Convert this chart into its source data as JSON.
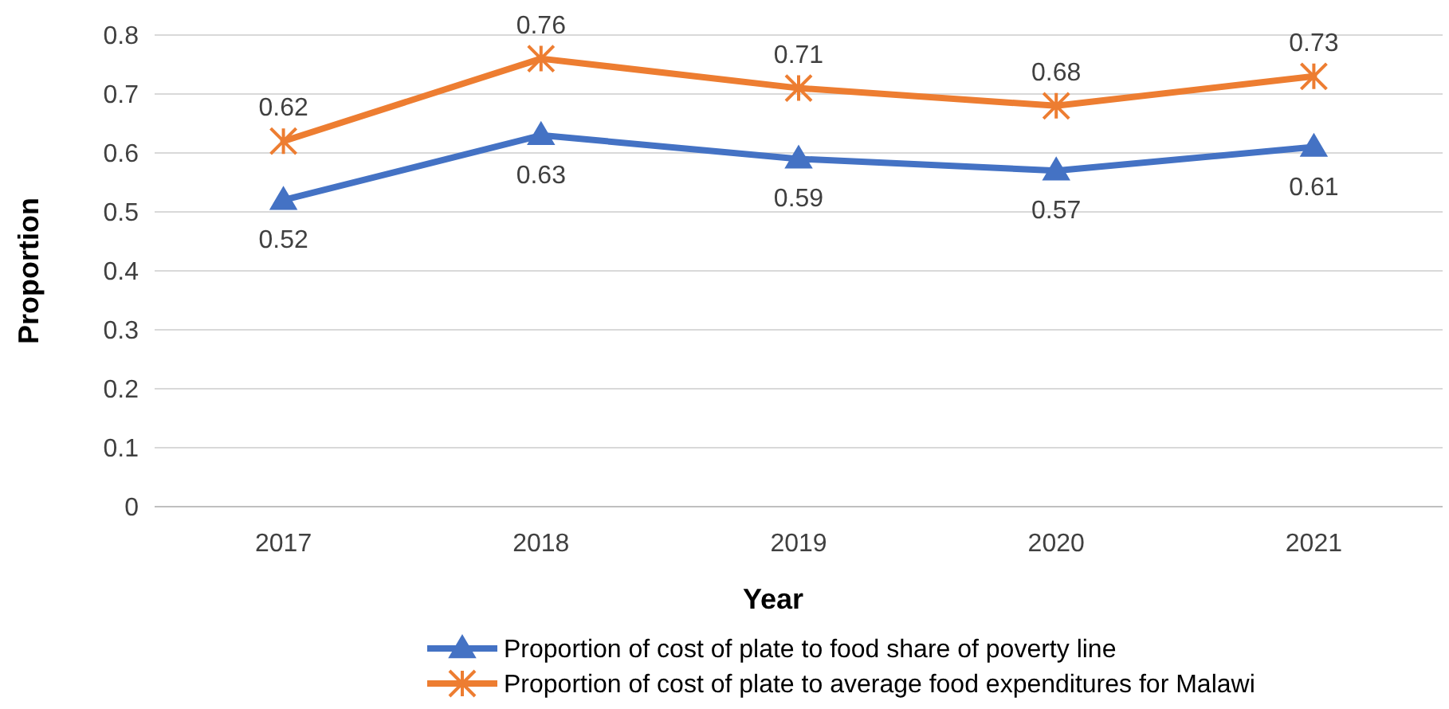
{
  "chart_data": {
    "type": "line",
    "xlabel": "Year",
    "ylabel": "Proportion",
    "categories": [
      "2017",
      "2018",
      "2019",
      "2020",
      "2021"
    ],
    "series": [
      {
        "name": "Proportion of cost of plate to food share of poverty line",
        "color": "#4472c4",
        "values": [
          0.52,
          0.63,
          0.59,
          0.57,
          0.61
        ],
        "marker": "triangle"
      },
      {
        "name": "Proportion of cost of plate to average food expenditures for Malawi",
        "color": "#ed7d31",
        "values": [
          0.62,
          0.76,
          0.71,
          0.68,
          0.73
        ],
        "marker": "cross"
      }
    ],
    "ylim": [
      0,
      0.8
    ],
    "yticks": [
      0,
      0.1,
      0.2,
      0.3,
      0.4,
      0.5,
      0.6,
      0.7,
      0.8
    ],
    "grid": "y",
    "legend": "bottom",
    "data_labels": true,
    "line_style": "solid"
  }
}
